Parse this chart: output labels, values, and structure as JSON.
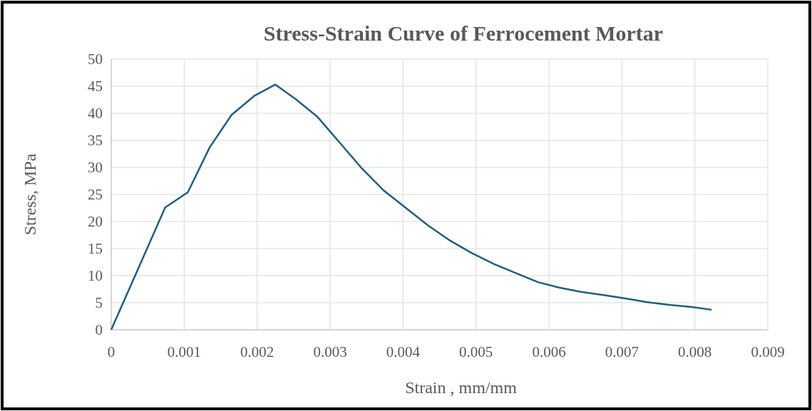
{
  "chart_data": {
    "type": "line",
    "title": "Stress-Strain Curve of Ferrocement Mortar",
    "xlabel": "Strain , mm/mm",
    "ylabel": "Stress, MPa",
    "x": [
      0,
      0.00074,
      0.00105,
      0.00135,
      0.00165,
      0.00196,
      0.00225,
      0.00253,
      0.00283,
      0.00313,
      0.00343,
      0.00373,
      0.00404,
      0.00434,
      0.00463,
      0.00494,
      0.00524,
      0.00554,
      0.00585,
      0.00614,
      0.00644,
      0.00675,
      0.00705,
      0.00735,
      0.00765,
      0.00796,
      0.00823
    ],
    "series": [
      {
        "color": "#1f5f7f",
        "values": [
          0,
          22.6,
          25.4,
          33.7,
          39.7,
          43.2,
          45.3,
          42.6,
          39.3,
          34.6,
          29.9,
          25.8,
          22.5,
          19.3,
          16.6,
          14.2,
          12.2,
          10.5,
          8.8,
          7.8,
          7.0,
          6.4,
          5.8,
          5.1,
          4.6,
          4.2,
          3.7
        ]
      }
    ],
    "xlim": [
      0,
      0.009
    ],
    "xticks": [
      0,
      0.001,
      0.002,
      0.003,
      0.004,
      0.005,
      0.006,
      0.007,
      0.008,
      0.009
    ],
    "ylim": [
      0,
      50
    ],
    "yticks": [
      0,
      5,
      10,
      15,
      20,
      25,
      30,
      35,
      40,
      45,
      50
    ],
    "grid": true,
    "marker": "none",
    "line_style": "solid"
  }
}
